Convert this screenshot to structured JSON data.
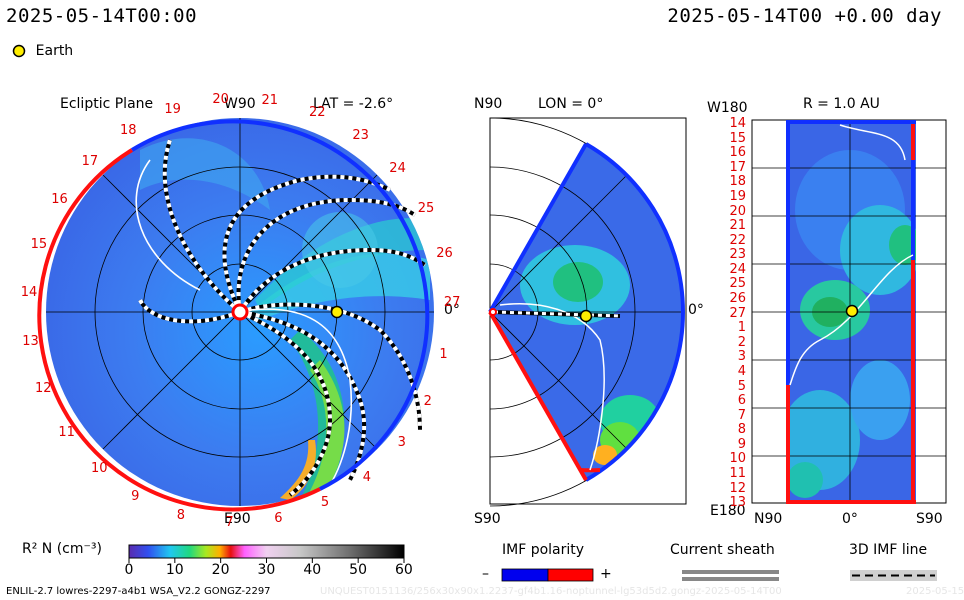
{
  "header": {
    "left_time": "2025-05-14T00:00",
    "right_time": "2025-05-14T00 +0.00 day"
  },
  "legend": {
    "earth_label": "Earth",
    "earth_color": "#ffee00"
  },
  "panel_ecliptic": {
    "title": "Ecliptic Plane",
    "top_label": "W90",
    "lat_label": "LAT = -2.6°",
    "right_label": "0°",
    "bottom_label": "E90",
    "rotation_numbers": [
      "1",
      "2",
      "3",
      "4",
      "5",
      "6",
      "7",
      "8",
      "9",
      "10",
      "11",
      "12",
      "13",
      "14",
      "15",
      "16",
      "17",
      "18",
      "19",
      "20",
      "21",
      "22",
      "23",
      "24",
      "25",
      "26",
      "27"
    ]
  },
  "panel_meridional": {
    "top_label": "N90",
    "lon_label": "LON = 0°",
    "right_label": "0°",
    "bottom_label": "S90"
  },
  "panel_map": {
    "top_left": "W180",
    "r_label": "R = 1.0 AU",
    "bottom_left": "E180",
    "bottom_mid": "0°",
    "bottom_n": "N90",
    "bottom_s": "S90",
    "y_ticks": [
      "14",
      "15",
      "16",
      "17",
      "18",
      "19",
      "20",
      "21",
      "22",
      "23",
      "24",
      "25",
      "26",
      "27",
      "1",
      "2",
      "3",
      "4",
      "5",
      "6",
      "7",
      "8",
      "9",
      "10",
      "11",
      "12",
      "13"
    ]
  },
  "colorbar": {
    "label": "R² N (cm⁻³)",
    "ticks": [
      "0",
      "10",
      "20",
      "30",
      "40",
      "50",
      "60"
    ],
    "range": [
      0,
      60
    ]
  },
  "imf_polarity": {
    "title": "IMF polarity",
    "minus": "–",
    "plus": "+",
    "neg_color": "#0000ee",
    "pos_color": "#ff0000"
  },
  "current_sheath": {
    "title": "Current sheath"
  },
  "imf_line": {
    "title": "3D IMF line"
  },
  "footer": {
    "left": "ENLIL-2.7 lowres-2297-a4b1 WSA_V2.2 GONGZ-2297",
    "faint": "UNQUEST0151136/256x30x90x1.2237-gf4b1.16-noptunnel-lg53d5d2.gongz-2025-05-14T00",
    "right": "2025-05-15"
  },
  "chart_data": [
    {
      "type": "heatmap",
      "title": "Ecliptic Plane",
      "quantity": "R² N (cm⁻³)",
      "lat": -2.6,
      "earth_marker": {
        "angle_deg": 0,
        "r_au": 1.0
      },
      "color_range": [
        0,
        60
      ]
    },
    {
      "type": "heatmap",
      "quantity": "R² N (cm⁻³)",
      "lon": 0,
      "earth_marker": {
        "lat_deg": 0,
        "r_au": 1.0
      },
      "color_range": [
        0,
        60
      ]
    },
    {
      "type": "heatmap",
      "quantity": "R² N (cm⁻³)",
      "r_au": 1.0,
      "earth_marker": {
        "lat_deg": 0,
        "lon_deg": 0
      },
      "color_range": [
        0,
        60
      ]
    }
  ]
}
